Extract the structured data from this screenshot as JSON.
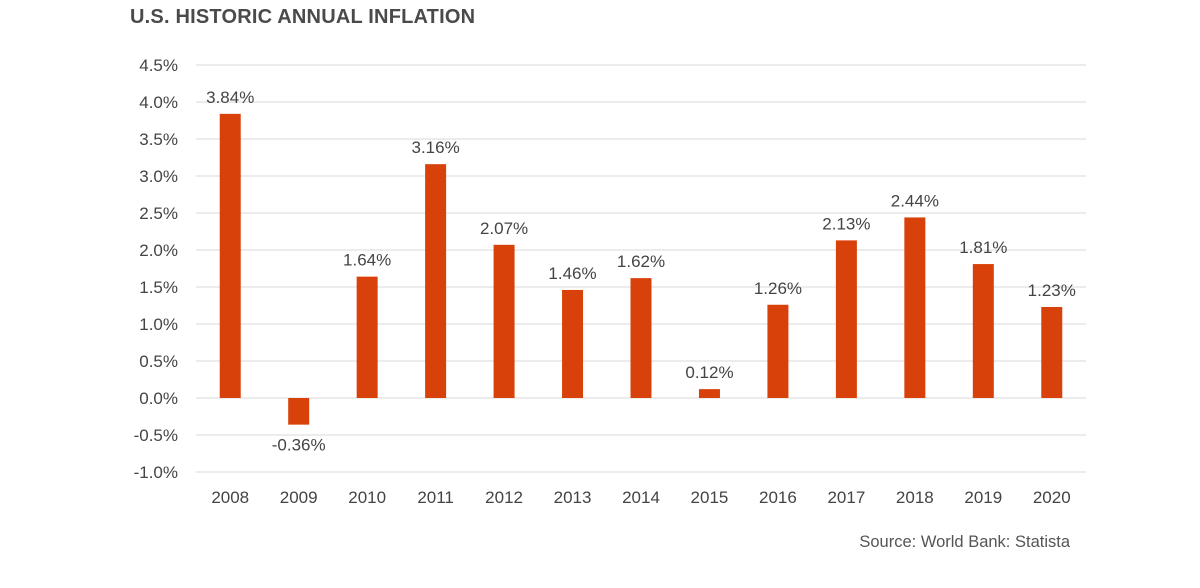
{
  "chart_data": {
    "type": "bar",
    "title": "U.S. HISTORIC ANNUAL INFLATION",
    "categories": [
      "2008",
      "2009",
      "2010",
      "2011",
      "2012",
      "2013",
      "2014",
      "2015",
      "2016",
      "2017",
      "2018",
      "2019",
      "2020"
    ],
    "values": [
      3.84,
      -0.36,
      1.64,
      3.16,
      2.07,
      1.46,
      1.62,
      0.12,
      1.26,
      2.13,
      2.44,
      1.81,
      1.23
    ],
    "data_labels": [
      "3.84%",
      "-0.36%",
      "1.64%",
      "3.16%",
      "2.07%",
      "1.46%",
      "1.62%",
      "0.12%",
      "1.26%",
      "2.13%",
      "2.44%",
      "1.81%",
      "1.23%"
    ],
    "y_ticks": [
      4.5,
      4.0,
      3.5,
      3.0,
      2.5,
      2.0,
      1.5,
      1.0,
      0.5,
      0.0,
      -0.5,
      -1.0
    ],
    "y_tick_labels": [
      "4.5%",
      "4.0%",
      "3.5%",
      "3.0%",
      "2.5%",
      "2.0%",
      "1.5%",
      "1.0%",
      "0.5%",
      "0.0%",
      "-0.5%",
      "-1.0%"
    ],
    "ylim": [
      -1.0,
      4.5
    ],
    "xlabel": "",
    "ylabel": "",
    "grid": true,
    "legend": "none",
    "bar_color": "#d9410b",
    "source": "Source: World Bank: Statista"
  }
}
